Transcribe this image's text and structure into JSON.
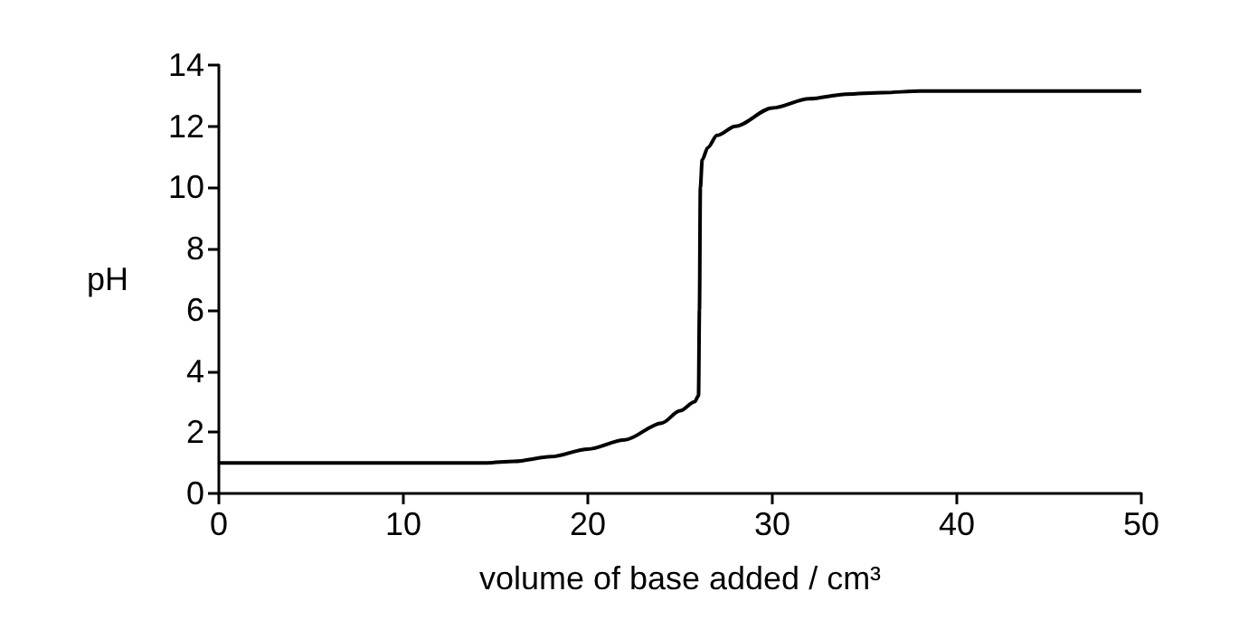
{
  "chart_data": {
    "type": "line",
    "xlabel": "volume of base added / cm³",
    "ylabel": "pH",
    "series": [
      {
        "color": "#000000",
        "x": [
          0,
          5,
          10,
          14.5,
          16,
          18,
          20,
          22,
          24,
          25,
          25.8,
          26,
          26.05,
          26.1,
          26.2,
          26.5,
          27,
          28,
          30,
          32,
          34,
          36,
          38,
          40,
          45,
          50
        ],
        "values": [
          1,
          1,
          1,
          1,
          1.05,
          1.2,
          1.45,
          1.75,
          2.3,
          2.7,
          3.0,
          3.2,
          6,
          10,
          10.9,
          11.3,
          11.7,
          12.0,
          12.6,
          12.9,
          13.05,
          13.1,
          13.15,
          13.15,
          13.15,
          13.15
        ]
      }
    ],
    "xlim": [
      0,
      50
    ],
    "xticks": [
      0,
      10,
      20,
      30,
      40,
      50
    ],
    "ylim": [
      0,
      14
    ],
    "yticks": [
      0,
      2,
      4,
      6,
      8,
      10,
      12,
      14
    ],
    "grid": false,
    "marker": "none",
    "line_style": "solid"
  }
}
